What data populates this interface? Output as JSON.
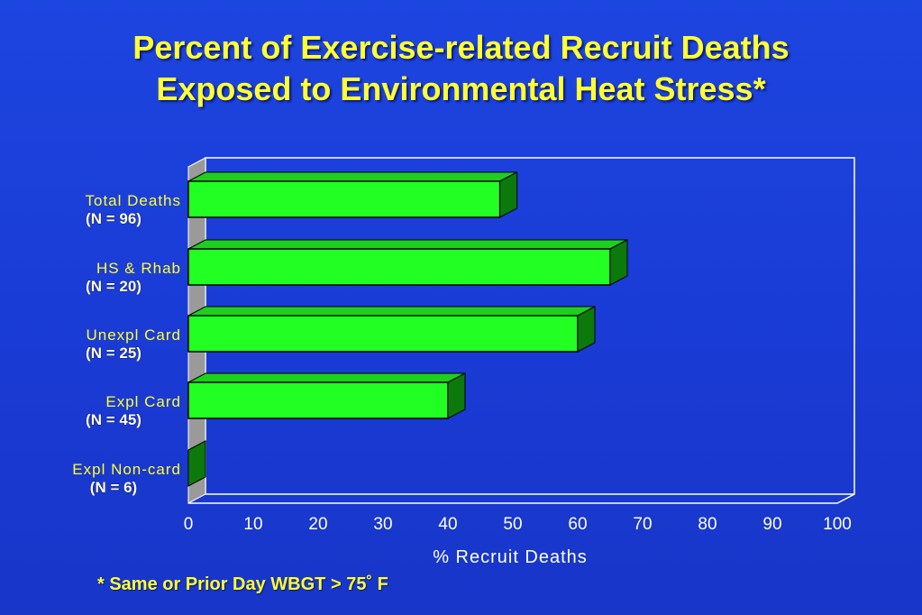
{
  "title": {
    "line1": "Percent of Exercise-related Recruit Deaths",
    "line2": "Exposed to Environmental Heat Stress*"
  },
  "footnote": "* Same or Prior Day WBGT > 75˚ F",
  "colors": {
    "background": "#1a3fd8",
    "title": "#ffff33",
    "bar_face": "#22ff22",
    "bar_top": "#1fcf1f",
    "bar_side": "#0b7a0b",
    "axis_text": "#ffffff",
    "category_text": "#ffff33"
  },
  "chart_data": {
    "type": "bar",
    "orientation": "horizontal",
    "categories": [
      "Total Deaths",
      "HS & Rhab",
      "Unexpl Card",
      "Expl Card",
      "Expl Non-card"
    ],
    "category_counts": [
      "(N = 96)",
      "(N = 20)",
      "(N = 25)",
      "(N = 45)",
      "(N = 6)"
    ],
    "values": [
      48,
      65,
      60,
      40,
      0
    ],
    "xlabel": "% Recruit Deaths",
    "xlim": [
      0,
      100
    ],
    "xticks": [
      "0",
      "10",
      "20",
      "30",
      "40",
      "50",
      "60",
      "70",
      "80",
      "90",
      "100"
    ],
    "grid": false,
    "legend": "none",
    "style": "3d"
  }
}
